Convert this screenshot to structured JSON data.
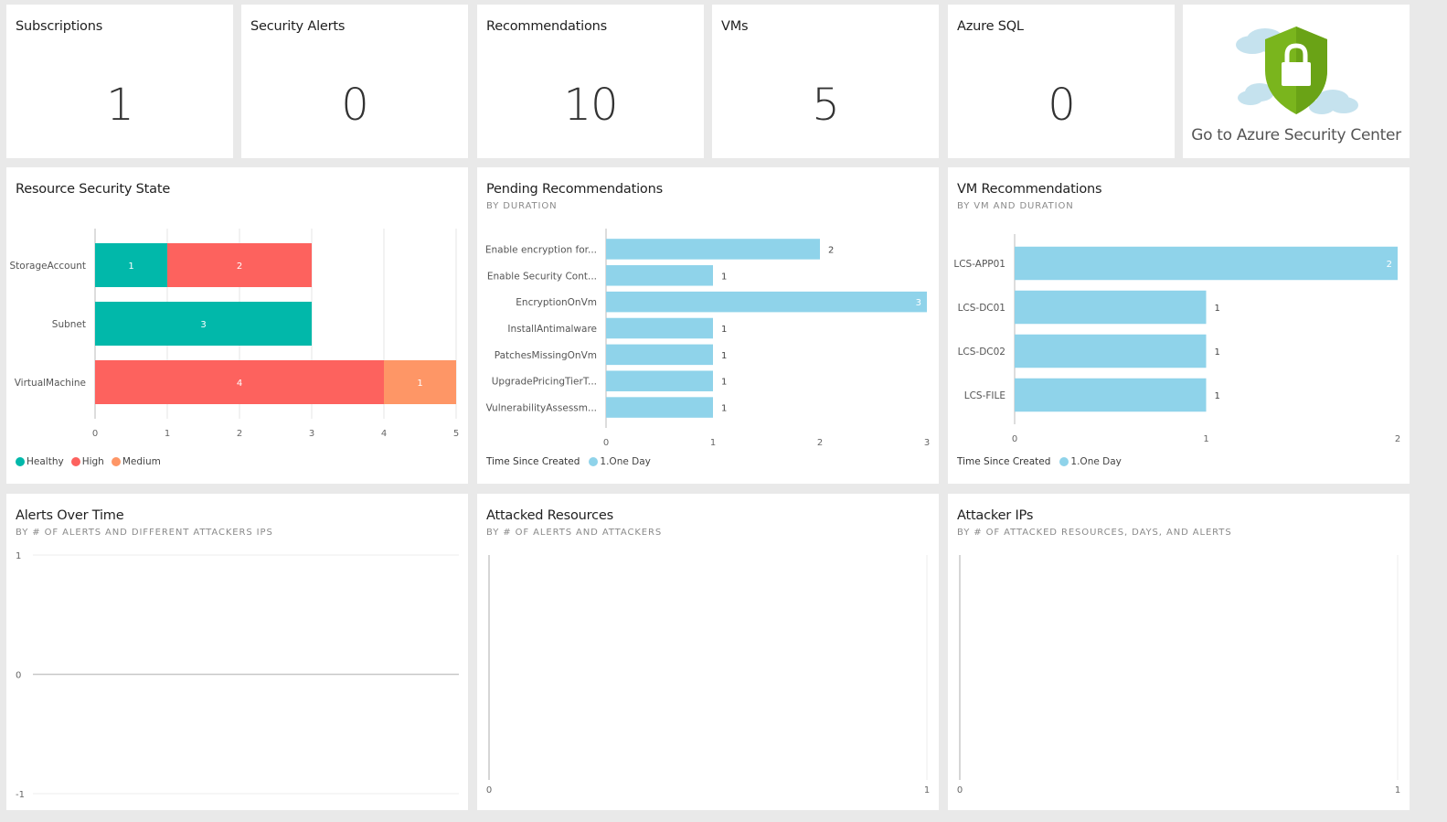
{
  "colors": {
    "healthy": "#01b8aa",
    "high": "#fd625e",
    "medium": "#fe9666",
    "one_day": "#8fd3ea",
    "shield": "#7ab51d",
    "cloud": "#c5e2ee"
  },
  "kpis": [
    {
      "title": "Subscriptions",
      "value": "1"
    },
    {
      "title": "Security Alerts",
      "value": "0"
    },
    {
      "title": "Recommendations",
      "value": "10"
    },
    {
      "title": "VMs",
      "value": "5"
    },
    {
      "title": "Azure SQL",
      "value": "0"
    }
  ],
  "security_center": {
    "label": "Go to Azure Security Center",
    "icon": "shield-lock-icon"
  },
  "resource_state": {
    "title": "Resource Security State",
    "legend": [
      {
        "name": "Healthy",
        "color": "#01b8aa"
      },
      {
        "name": "High",
        "color": "#fd625e"
      },
      {
        "name": "Medium",
        "color": "#fe9666"
      }
    ]
  },
  "pending": {
    "title": "Pending Recommendations",
    "subtitle": "BY DURATION",
    "legend_title": "Time Since Created",
    "legend_item": "1.One Day"
  },
  "vm_recs": {
    "title": "VM Recommendations",
    "subtitle": "BY VM AND DURATION",
    "legend_title": "Time Since Created",
    "legend_item": "1.One Day"
  },
  "alerts_over_time": {
    "title": "Alerts Over Time",
    "subtitle": "BY # OF ALERTS AND DIFFERENT ATTACKERS IPS"
  },
  "attacked_resources": {
    "title": "Attacked Resources",
    "subtitle": "BY # OF ALERTS AND ATTACKERS"
  },
  "attacker_ips": {
    "title": "Attacker IPs",
    "subtitle": "BY # OF ATTACKED RESOURCES, DAYS, AND ALERTS"
  },
  "chart_data": [
    {
      "id": "resource_security_state",
      "type": "bar",
      "orientation": "horizontal",
      "stacked": true,
      "title": "Resource Security State",
      "categories": [
        "StorageAccount",
        "Subnet",
        "VirtualMachine"
      ],
      "series": [
        {
          "name": "Healthy",
          "color": "#01b8aa",
          "values": [
            1,
            3,
            0
          ]
        },
        {
          "name": "High",
          "color": "#fd625e",
          "values": [
            2,
            0,
            4
          ]
        },
        {
          "name": "Medium",
          "color": "#fe9666",
          "values": [
            0,
            0,
            1
          ]
        }
      ],
      "xlim": [
        0,
        5
      ],
      "xticks": [
        "0",
        "1",
        "2",
        "3",
        "4",
        "5"
      ],
      "grid": true,
      "legend": "bottom-left"
    },
    {
      "id": "pending_recommendations",
      "type": "bar",
      "orientation": "horizontal",
      "title": "Pending Recommendations",
      "categories": [
        "Enable encryption for...",
        "Enable Security Cont...",
        "EncryptionOnVm",
        "InstallAntimalware",
        "PatchesMissingOnVm",
        "UpgradePricingTierT...",
        "VulnerabilityAssessm..."
      ],
      "series": [
        {
          "name": "1.One Day",
          "color": "#8fd3ea",
          "values": [
            2,
            1,
            3,
            1,
            1,
            1,
            1
          ]
        }
      ],
      "xlim": [
        0,
        3
      ],
      "xticks": [
        "0",
        "1",
        "2",
        "3"
      ],
      "legend": "bottom-left"
    },
    {
      "id": "vm_recommendations",
      "type": "bar",
      "orientation": "horizontal",
      "title": "VM Recommendations",
      "categories": [
        "LCS-APP01",
        "LCS-DC01",
        "LCS-DC02",
        "LCS-FILE"
      ],
      "series": [
        {
          "name": "1.One Day",
          "color": "#8fd3ea",
          "values": [
            2,
            1,
            1,
            1
          ]
        }
      ],
      "xlim": [
        0,
        2
      ],
      "xticks": [
        "0",
        "1",
        "2"
      ],
      "legend": "bottom-left"
    },
    {
      "id": "alerts_over_time",
      "type": "line",
      "title": "Alerts Over Time",
      "yticks": [
        "1",
        "0",
        "-1"
      ],
      "ylim": [
        -1,
        1
      ],
      "series": []
    },
    {
      "id": "attacked_resources",
      "type": "scatter",
      "title": "Attacked Resources",
      "xticks": [
        "0",
        "1"
      ],
      "xlim": [
        0,
        1
      ],
      "series": []
    },
    {
      "id": "attacker_ips",
      "type": "scatter",
      "title": "Attacker IPs",
      "xticks": [
        "0",
        "1"
      ],
      "xlim": [
        0,
        1
      ],
      "series": []
    }
  ]
}
